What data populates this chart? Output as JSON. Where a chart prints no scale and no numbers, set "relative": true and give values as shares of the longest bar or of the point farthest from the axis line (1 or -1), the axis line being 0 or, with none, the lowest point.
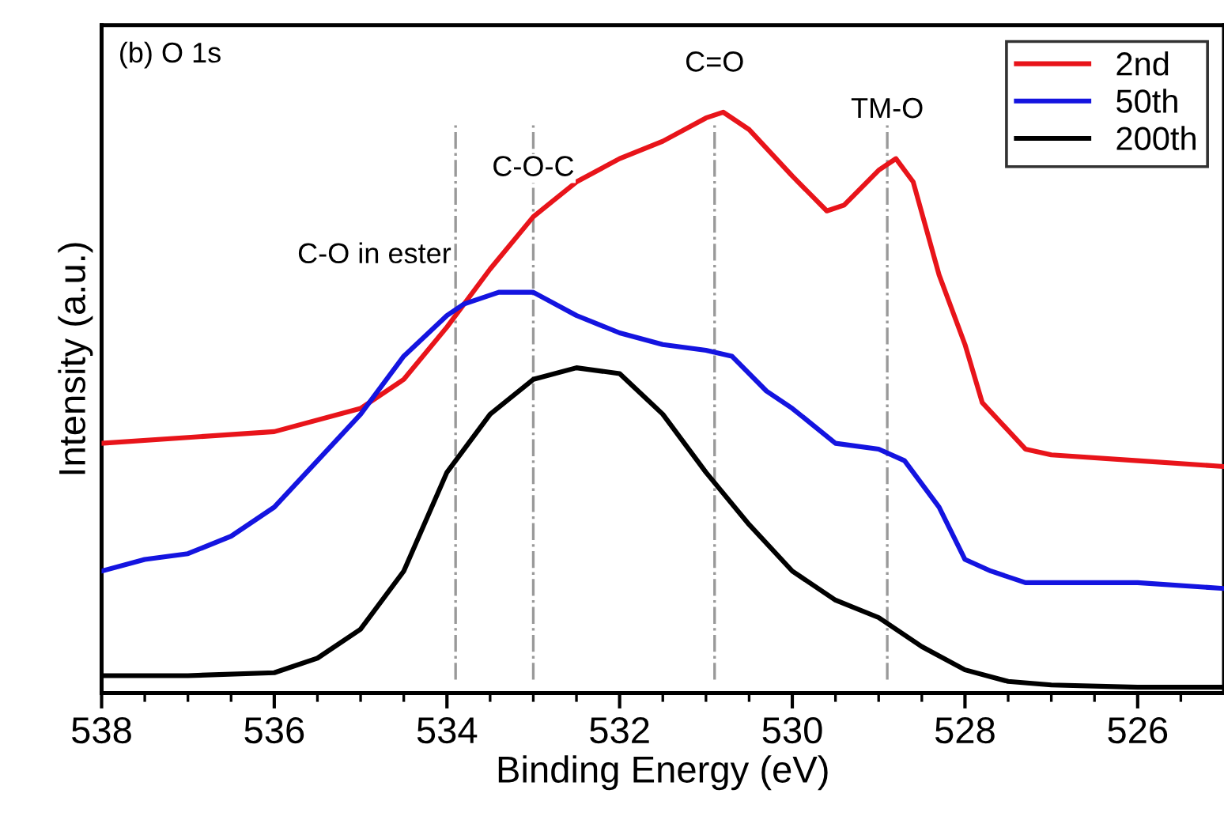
{
  "chart_data": {
    "type": "line",
    "xlabel": "Binding Energy (eV)",
    "ylabel": "Intensity (a.u.)",
    "relative": true,
    "tick_labels": "x",
    "legend": "top right",
    "grid": false,
    "line_style": "solid",
    "marker": "none",
    "xlim": [
      538,
      525
    ],
    "xticks": [
      538,
      {
        "value": 537.5,
        "label": null
      },
      {
        "value": 537,
        "label": null
      },
      {
        "value": 536.5,
        "label": null
      },
      536,
      {
        "value": 535.5,
        "label": null
      },
      {
        "value": 535,
        "label": null
      },
      {
        "value": 534.5,
        "label": null
      },
      534,
      {
        "value": 533.5,
        "label": null
      },
      {
        "value": 533,
        "label": null
      },
      {
        "value": 532.5,
        "label": null
      },
      532,
      {
        "value": 531.5,
        "label": null
      },
      {
        "value": 531,
        "label": null
      },
      {
        "value": 530.5,
        "label": null
      },
      530,
      {
        "value": 529.5,
        "label": null
      },
      {
        "value": 529,
        "label": null
      },
      {
        "value": 528.5,
        "label": null
      },
      528,
      {
        "value": 527.5,
        "label": null
      },
      {
        "value": 527,
        "label": null
      },
      {
        "value": 526.5,
        "label": null
      },
      526,
      {
        "value": 525.5,
        "label": null
      }
    ],
    "annotations": [
      "(b) O 1s"
    ],
    "ref_lines": [
      {
        "axis": "x",
        "value": 533.9,
        "label": "C-O in ester",
        "color": "#999999",
        "line_style": "dashdot"
      },
      {
        "axis": "x",
        "value": 533.0,
        "label": "C-O-C",
        "color": "#999999",
        "line_style": "dashdot"
      },
      {
        "axis": "x",
        "value": 530.9,
        "label": "C=O",
        "color": "#999999",
        "line_style": "dashdot"
      },
      {
        "axis": "x",
        "value": 528.9,
        "label": "TM-O",
        "color": "#999999",
        "line_style": "dashdot"
      }
    ],
    "series": [
      {
        "name": "2nd",
        "color": "#e8141a",
        "x": [
          538,
          537,
          536,
          535,
          534.5,
          534,
          533.5,
          533,
          532.5,
          532,
          531.5,
          531,
          530.8,
          530.5,
          530,
          529.6,
          529.4,
          529,
          528.8,
          528.6,
          528.3,
          528,
          527.8,
          527.3,
          527,
          526,
          525
        ],
        "values": [
          0.43,
          0.44,
          0.45,
          0.49,
          0.54,
          0.63,
          0.73,
          0.82,
          0.88,
          0.92,
          0.95,
          0.99,
          1.0,
          0.97,
          0.89,
          0.83,
          0.84,
          0.9,
          0.92,
          0.88,
          0.72,
          0.6,
          0.5,
          0.42,
          0.41,
          0.4,
          0.39
        ]
      },
      {
        "name": "50th",
        "color": "#1414e0",
        "x": [
          538,
          537.5,
          537,
          536.5,
          536,
          535.5,
          535,
          534.5,
          534,
          533.8,
          533.4,
          533,
          532.5,
          532,
          531.5,
          531,
          530.7,
          530.3,
          530,
          529.5,
          529,
          528.7,
          528.3,
          528,
          527.7,
          527.3,
          526,
          525
        ],
        "values": [
          0.21,
          0.23,
          0.24,
          0.27,
          0.32,
          0.4,
          0.48,
          0.58,
          0.65,
          0.67,
          0.69,
          0.69,
          0.65,
          0.62,
          0.6,
          0.59,
          0.58,
          0.52,
          0.49,
          0.43,
          0.42,
          0.4,
          0.32,
          0.23,
          0.21,
          0.19,
          0.19,
          0.18
        ]
      },
      {
        "name": "200th",
        "color": "#000000",
        "x": [
          538,
          537,
          536,
          535.5,
          535,
          534.5,
          534,
          533.5,
          533,
          532.5,
          532,
          531.5,
          531,
          530.5,
          530,
          529.5,
          529,
          528.5,
          528,
          527.5,
          527,
          526,
          525
        ],
        "values": [
          0.03,
          0.03,
          0.035,
          0.06,
          0.11,
          0.21,
          0.38,
          0.48,
          0.54,
          0.56,
          0.55,
          0.48,
          0.38,
          0.29,
          0.21,
          0.16,
          0.13,
          0.08,
          0.04,
          0.02,
          0.014,
          0.01,
          0.01
        ]
      }
    ]
  }
}
